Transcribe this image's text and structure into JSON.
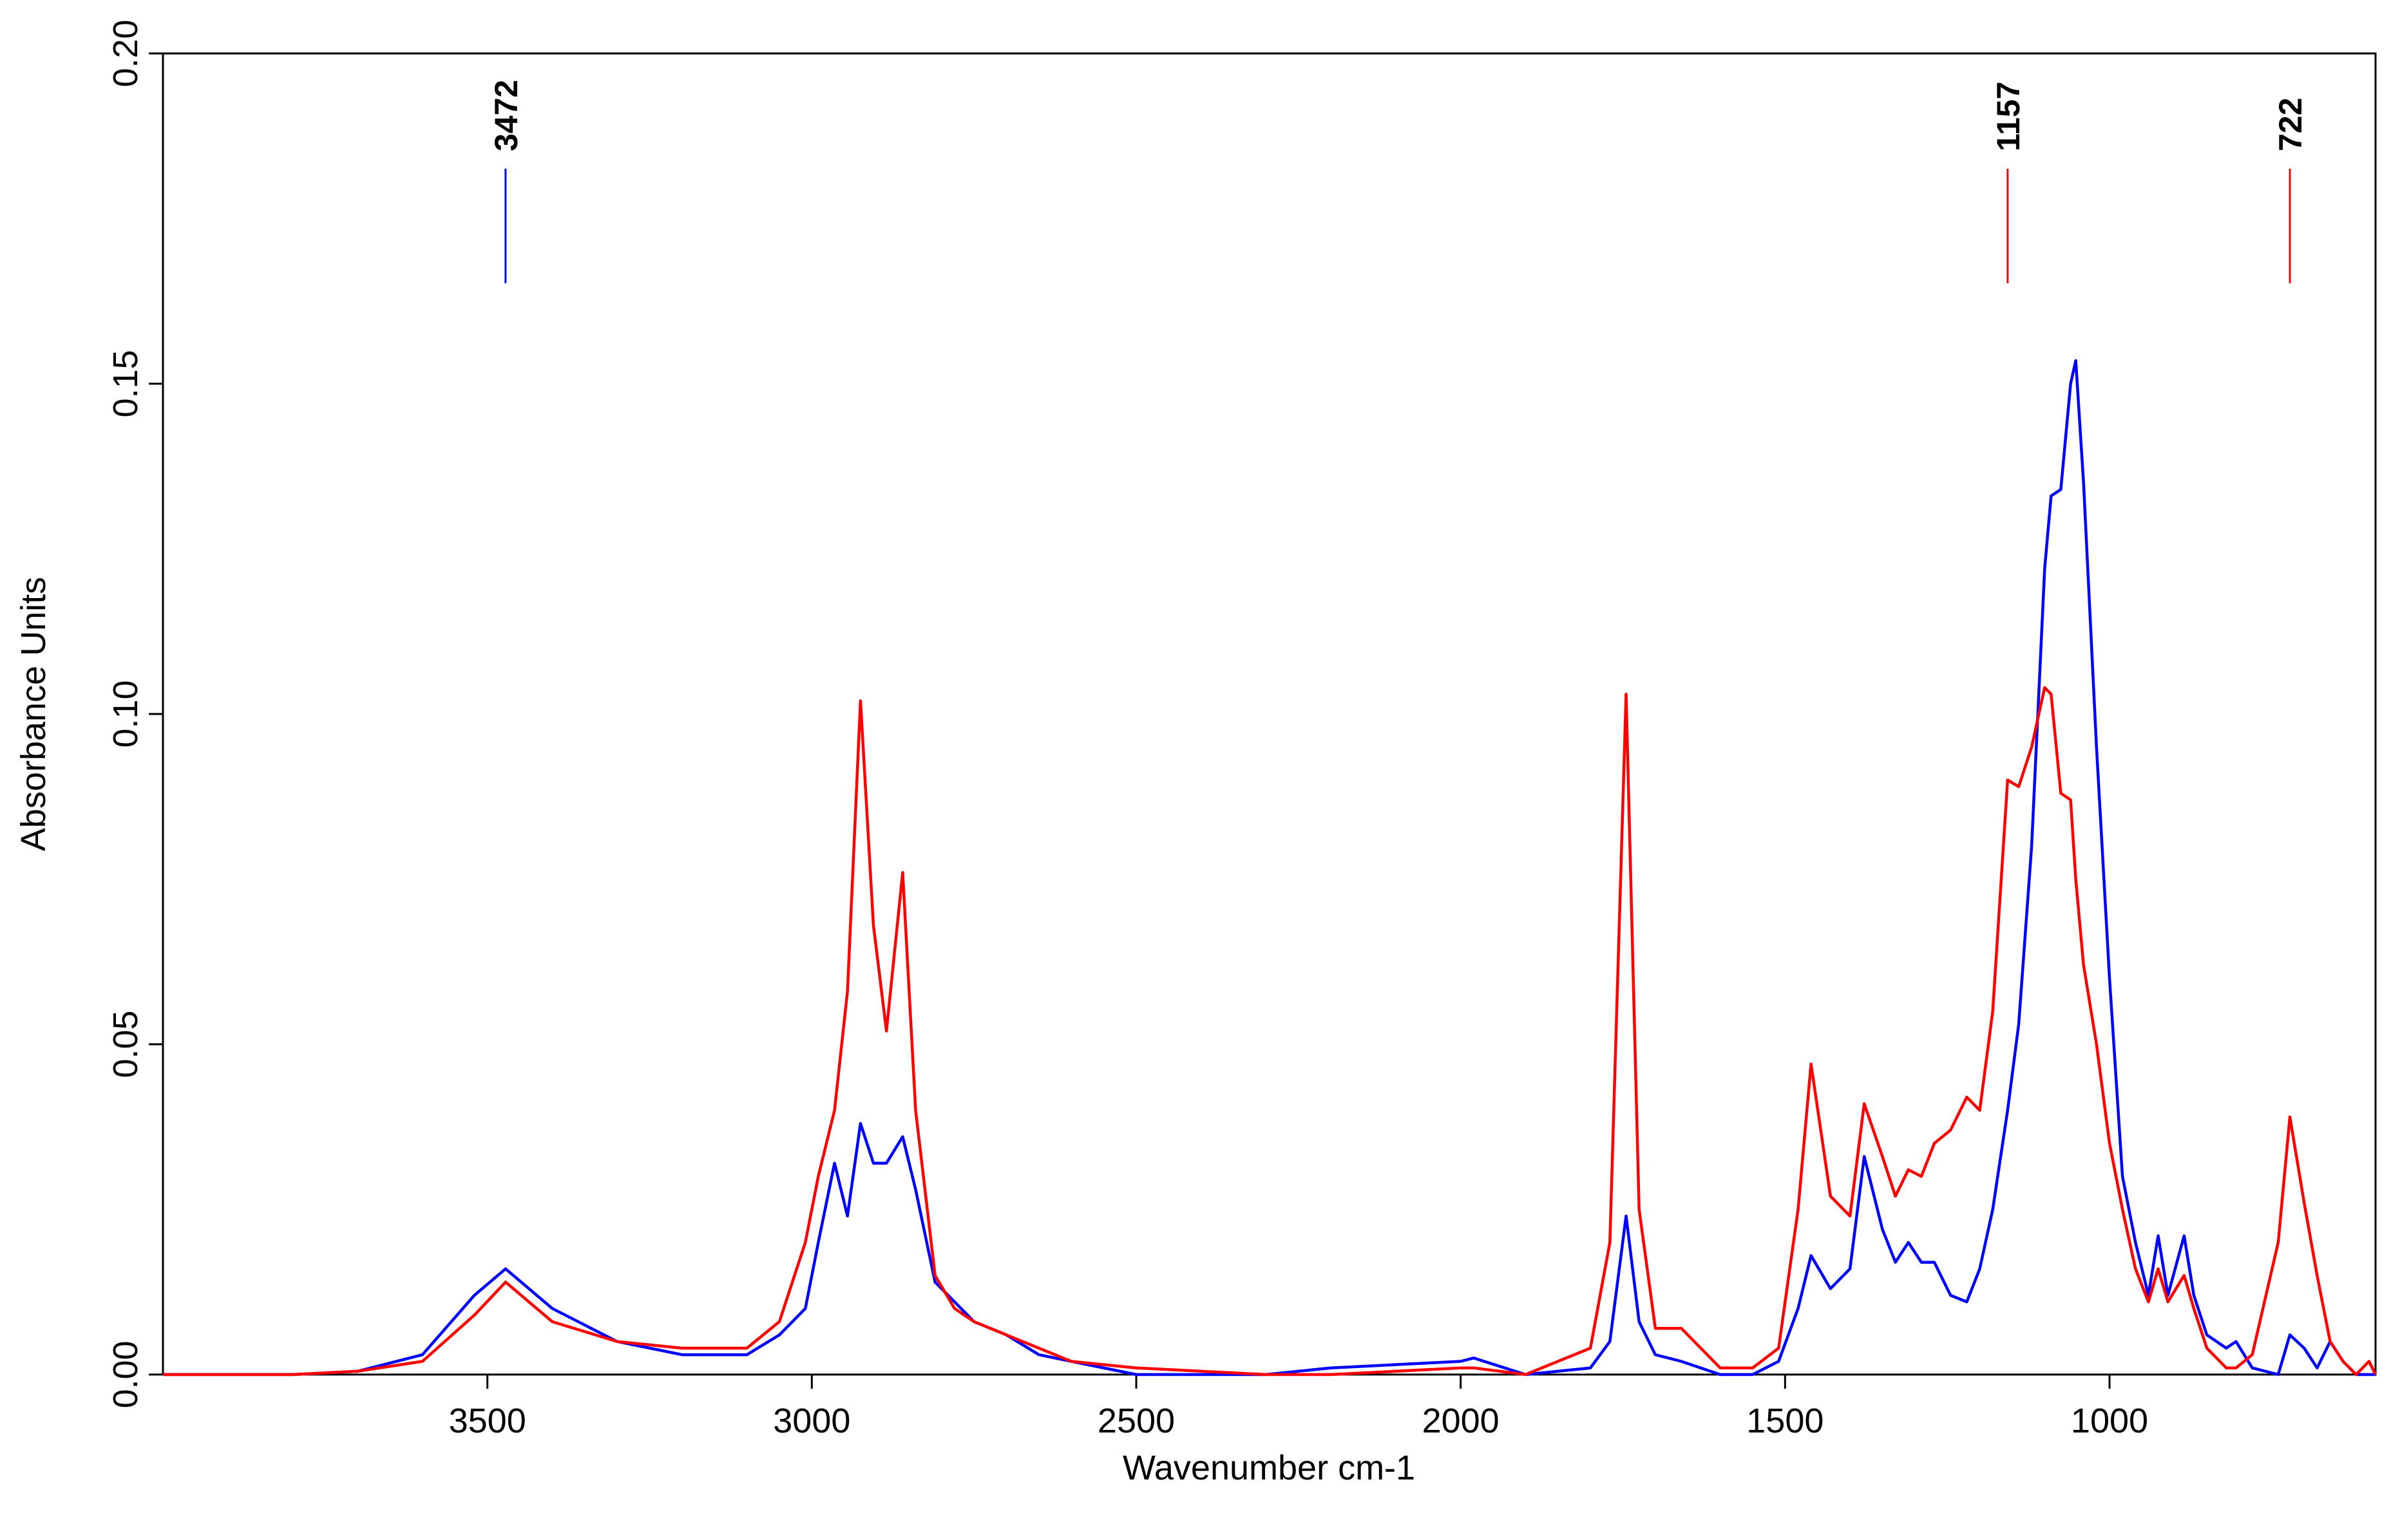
{
  "chart_data": {
    "type": "line",
    "xlabel": "Wavenumber cm-1",
    "ylabel": "Absorbance Units",
    "x": [
      4000,
      3900,
      3800,
      3700,
      3600,
      3520,
      3472,
      3400,
      3300,
      3200,
      3100,
      3050,
      3010,
      2990,
      2965,
      2945,
      2925,
      2905,
      2885,
      2860,
      2840,
      2810,
      2780,
      2750,
      2700,
      2650,
      2600,
      2500,
      2300,
      2200,
      2000,
      1980,
      1900,
      1800,
      1770,
      1745,
      1725,
      1700,
      1660,
      1600,
      1550,
      1510,
      1480,
      1460,
      1430,
      1400,
      1378,
      1350,
      1330,
      1310,
      1290,
      1270,
      1245,
      1220,
      1200,
      1180,
      1157,
      1140,
      1120,
      1100,
      1090,
      1075,
      1060,
      1052,
      1040,
      1020,
      1000,
      980,
      960,
      940,
      925,
      910,
      885,
      870,
      850,
      820,
      805,
      780,
      740,
      722,
      700,
      680,
      660,
      640,
      620,
      600,
      590
    ],
    "series": [
      {
        "color": "#0000ff",
        "values": [
          0,
          0,
          0,
          0.0005,
          0.003,
          0.012,
          0.016,
          0.01,
          0.005,
          0.003,
          0.003,
          0.006,
          0.01,
          0.02,
          0.032,
          0.024,
          0.038,
          0.032,
          0.032,
          0.036,
          0.028,
          0.014,
          0.011,
          0.008,
          0.006,
          0.003,
          0.002,
          0,
          0,
          0.001,
          0.002,
          0.0025,
          0,
          0.001,
          0.005,
          0.024,
          0.008,
          0.003,
          0.002,
          0,
          0,
          0.002,
          0.01,
          0.018,
          0.013,
          0.016,
          0.033,
          0.022,
          0.017,
          0.02,
          0.017,
          0.017,
          0.012,
          0.011,
          0.016,
          0.025,
          0.04,
          0.053,
          0.08,
          0.122,
          0.133,
          0.134,
          0.15,
          0.1535,
          0.135,
          0.095,
          0.06,
          0.03,
          0.02,
          0.012,
          0.021,
          0.012,
          0.021,
          0.012,
          0.006,
          0.004,
          0.005,
          0.001,
          0,
          0.006,
          0.004,
          0.001,
          0.005,
          0.002,
          0,
          0,
          0
        ]
      },
      {
        "color": "#ff0000",
        "values": [
          0,
          0,
          0,
          0.0005,
          0.002,
          0.009,
          0.014,
          0.008,
          0.005,
          0.004,
          0.004,
          0.008,
          0.02,
          0.03,
          0.04,
          0.058,
          0.102,
          0.068,
          0.052,
          0.076,
          0.04,
          0.015,
          0.01,
          0.008,
          0.006,
          0.004,
          0.002,
          0.001,
          0,
          0,
          0.001,
          0.001,
          0,
          0.004,
          0.02,
          0.103,
          0.025,
          0.007,
          0.007,
          0.001,
          0.001,
          0.004,
          0.025,
          0.047,
          0.027,
          0.024,
          0.041,
          0.033,
          0.027,
          0.031,
          0.03,
          0.035,
          0.037,
          0.042,
          0.04,
          0.055,
          0.09,
          0.089,
          0.095,
          0.104,
          0.103,
          0.088,
          0.087,
          0.075,
          0.062,
          0.05,
          0.035,
          0.025,
          0.016,
          0.011,
          0.016,
          0.011,
          0.015,
          0.01,
          0.004,
          0.001,
          0.001,
          0.003,
          0.02,
          0.039,
          0.026,
          0.015,
          0.005,
          0.002,
          0,
          0.002,
          0
        ]
      }
    ],
    "annotations": [
      {
        "x": 3472,
        "color": "#0000ff"
      },
      {
        "x": 1157,
        "color": "#ff0000"
      },
      {
        "x": 722,
        "color": "#ff0000"
      }
    ],
    "xlim": [
      4000,
      590
    ],
    "xticks": [
      3500,
      3000,
      2500,
      2000,
      1500,
      1000
    ],
    "ylim": [
      0,
      0.2
    ],
    "yticks": [
      {
        "value": 0,
        "label": "0.00"
      },
      {
        "value": 0.05,
        "label": "0.05"
      },
      {
        "value": 0.1,
        "label": "0.10"
      },
      {
        "value": 0.15,
        "label": "0.15"
      },
      {
        "value": 0.2,
        "label": "0.20"
      }
    ]
  }
}
